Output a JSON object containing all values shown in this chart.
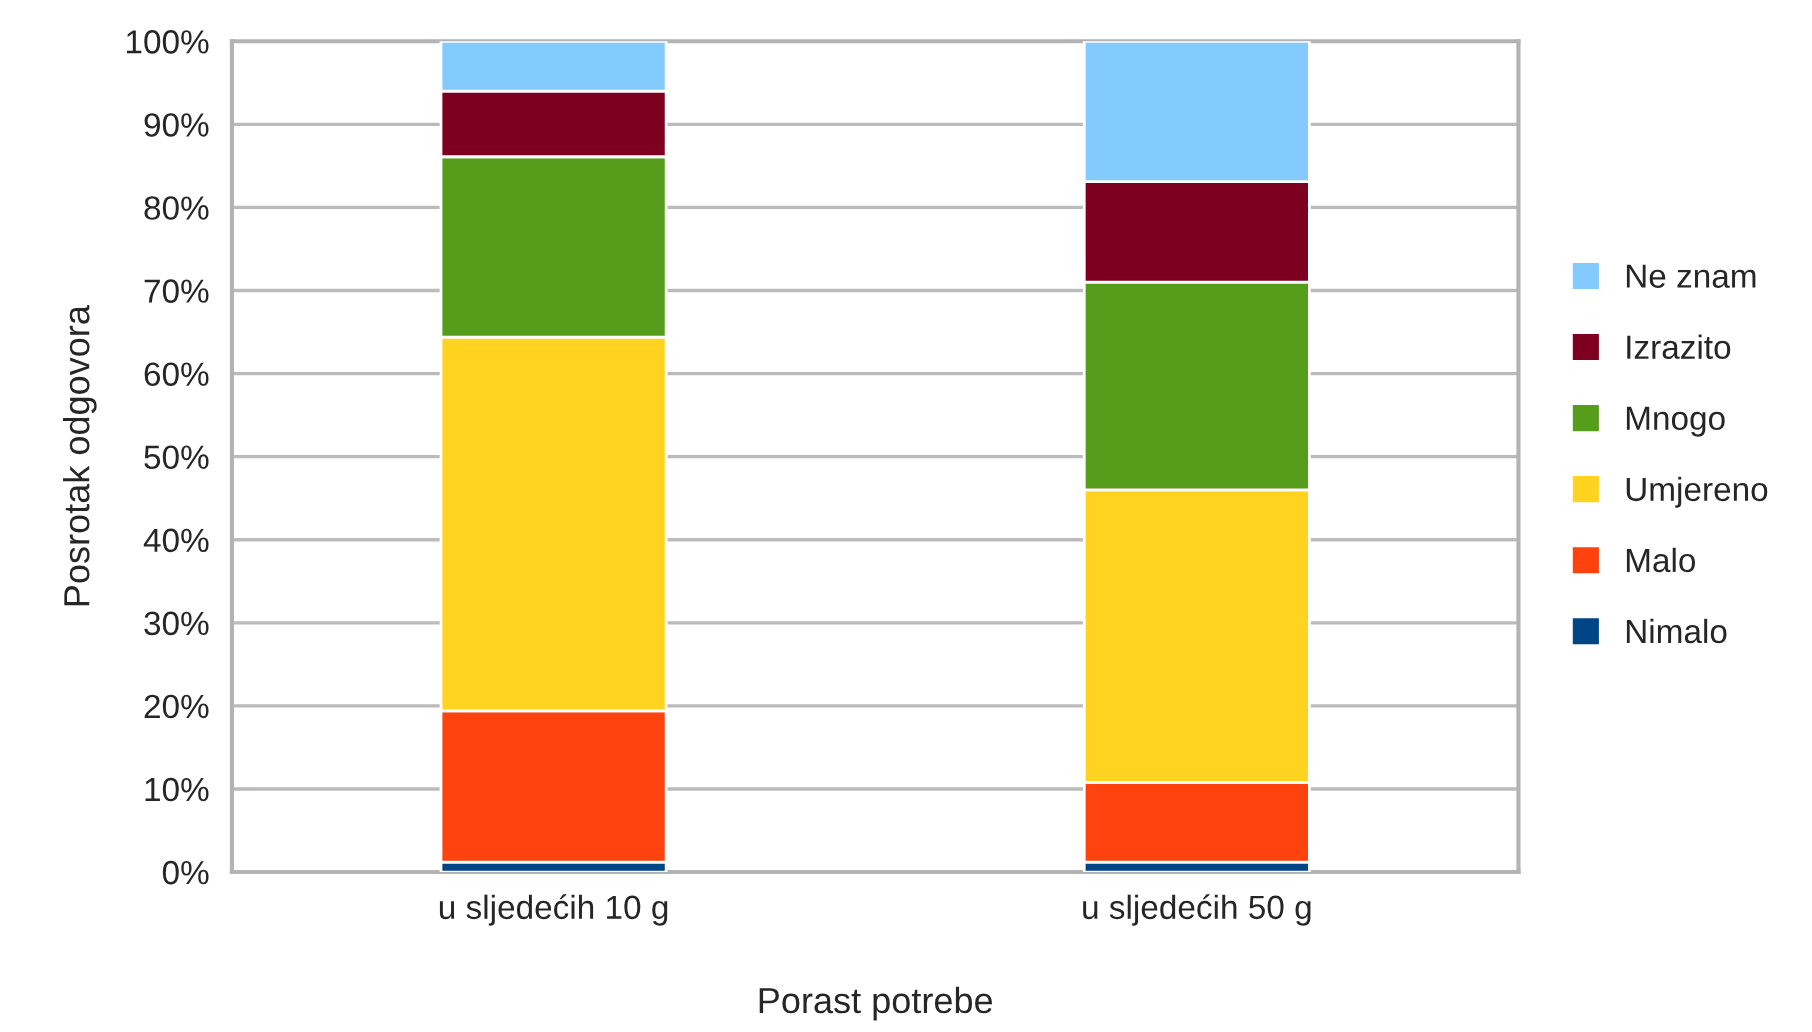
{
  "chart_data": {
    "type": "bar",
    "stacked": true,
    "xlabel": "Porast potrebe",
    "ylabel": "Posrotak odgovora",
    "categories": [
      "u sljedećih 10 g",
      "u sljedećih 50 g"
    ],
    "series": [
      {
        "name": "Nimalo",
        "color": "#004586",
        "values": [
          1.2,
          1.2
        ]
      },
      {
        "name": "Malo",
        "color": "#ff420e",
        "values": [
          18.2,
          9.6
        ]
      },
      {
        "name": "Umjereno",
        "color": "#ffd320",
        "values": [
          45.0,
          35.2
        ]
      },
      {
        "name": "Mnogo",
        "color": "#579d1c",
        "values": [
          21.7,
          25.0
        ]
      },
      {
        "name": "Izrazito",
        "color": "#7e0021",
        "values": [
          7.9,
          12.1
        ]
      },
      {
        "name": "Ne znam",
        "color": "#83caff",
        "values": [
          6.0,
          16.9
        ]
      }
    ],
    "ylim": [
      0,
      100
    ],
    "yticks": [
      {
        "value": 0,
        "label": "0%"
      },
      {
        "value": 10,
        "label": "10%"
      },
      {
        "value": 20,
        "label": "20%"
      },
      {
        "value": 30,
        "label": "30%"
      },
      {
        "value": 40,
        "label": "40%"
      },
      {
        "value": 50,
        "label": "50%"
      },
      {
        "value": 60,
        "label": "60%"
      },
      {
        "value": 70,
        "label": "70%"
      },
      {
        "value": 80,
        "label": "80%"
      },
      {
        "value": 90,
        "label": "90%"
      },
      {
        "value": 100,
        "label": "100%"
      }
    ],
    "grid": "y",
    "legend": "right"
  }
}
